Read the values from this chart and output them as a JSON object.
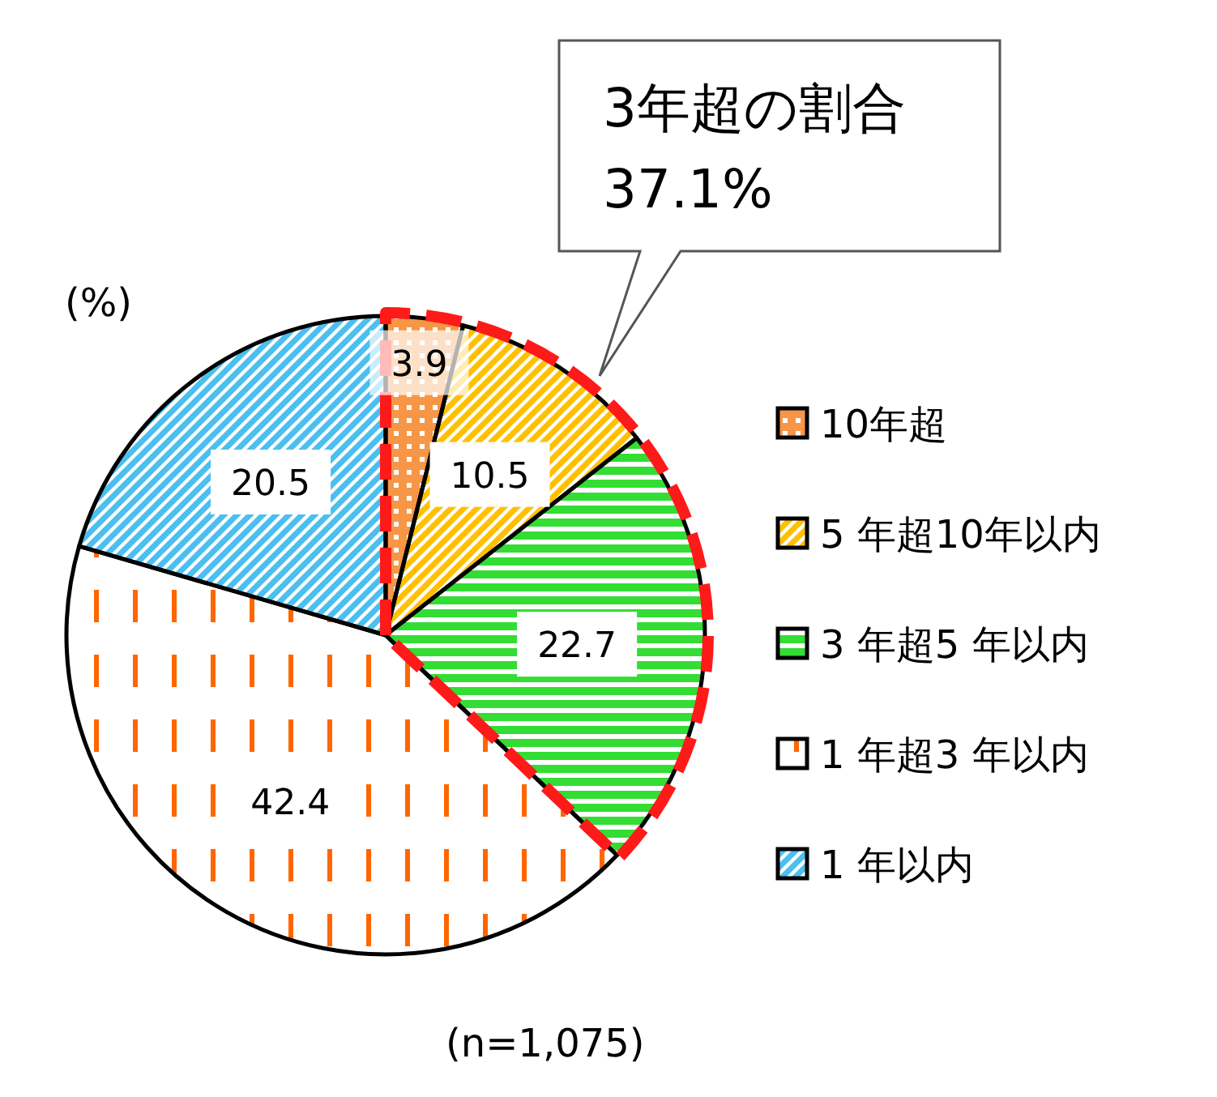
{
  "chart_data": {
    "type": "pie",
    "categories": [
      "10年超",
      "5 年超10年以内",
      "3 年超5 年以内",
      "1 年超3 年以内",
      "1 年以内"
    ],
    "values": [
      3.9,
      10.5,
      22.7,
      42.4,
      20.5
    ],
    "colors": [
      "#f79646",
      "#ffc000",
      "#33dd33",
      "#ff6600",
      "#4bbfef"
    ],
    "data_labels": true,
    "legend": "right",
    "annotations": [
      "(%)",
      "3年超の割合",
      "37.1%",
      "(n=1,075)"
    ]
  }
}
